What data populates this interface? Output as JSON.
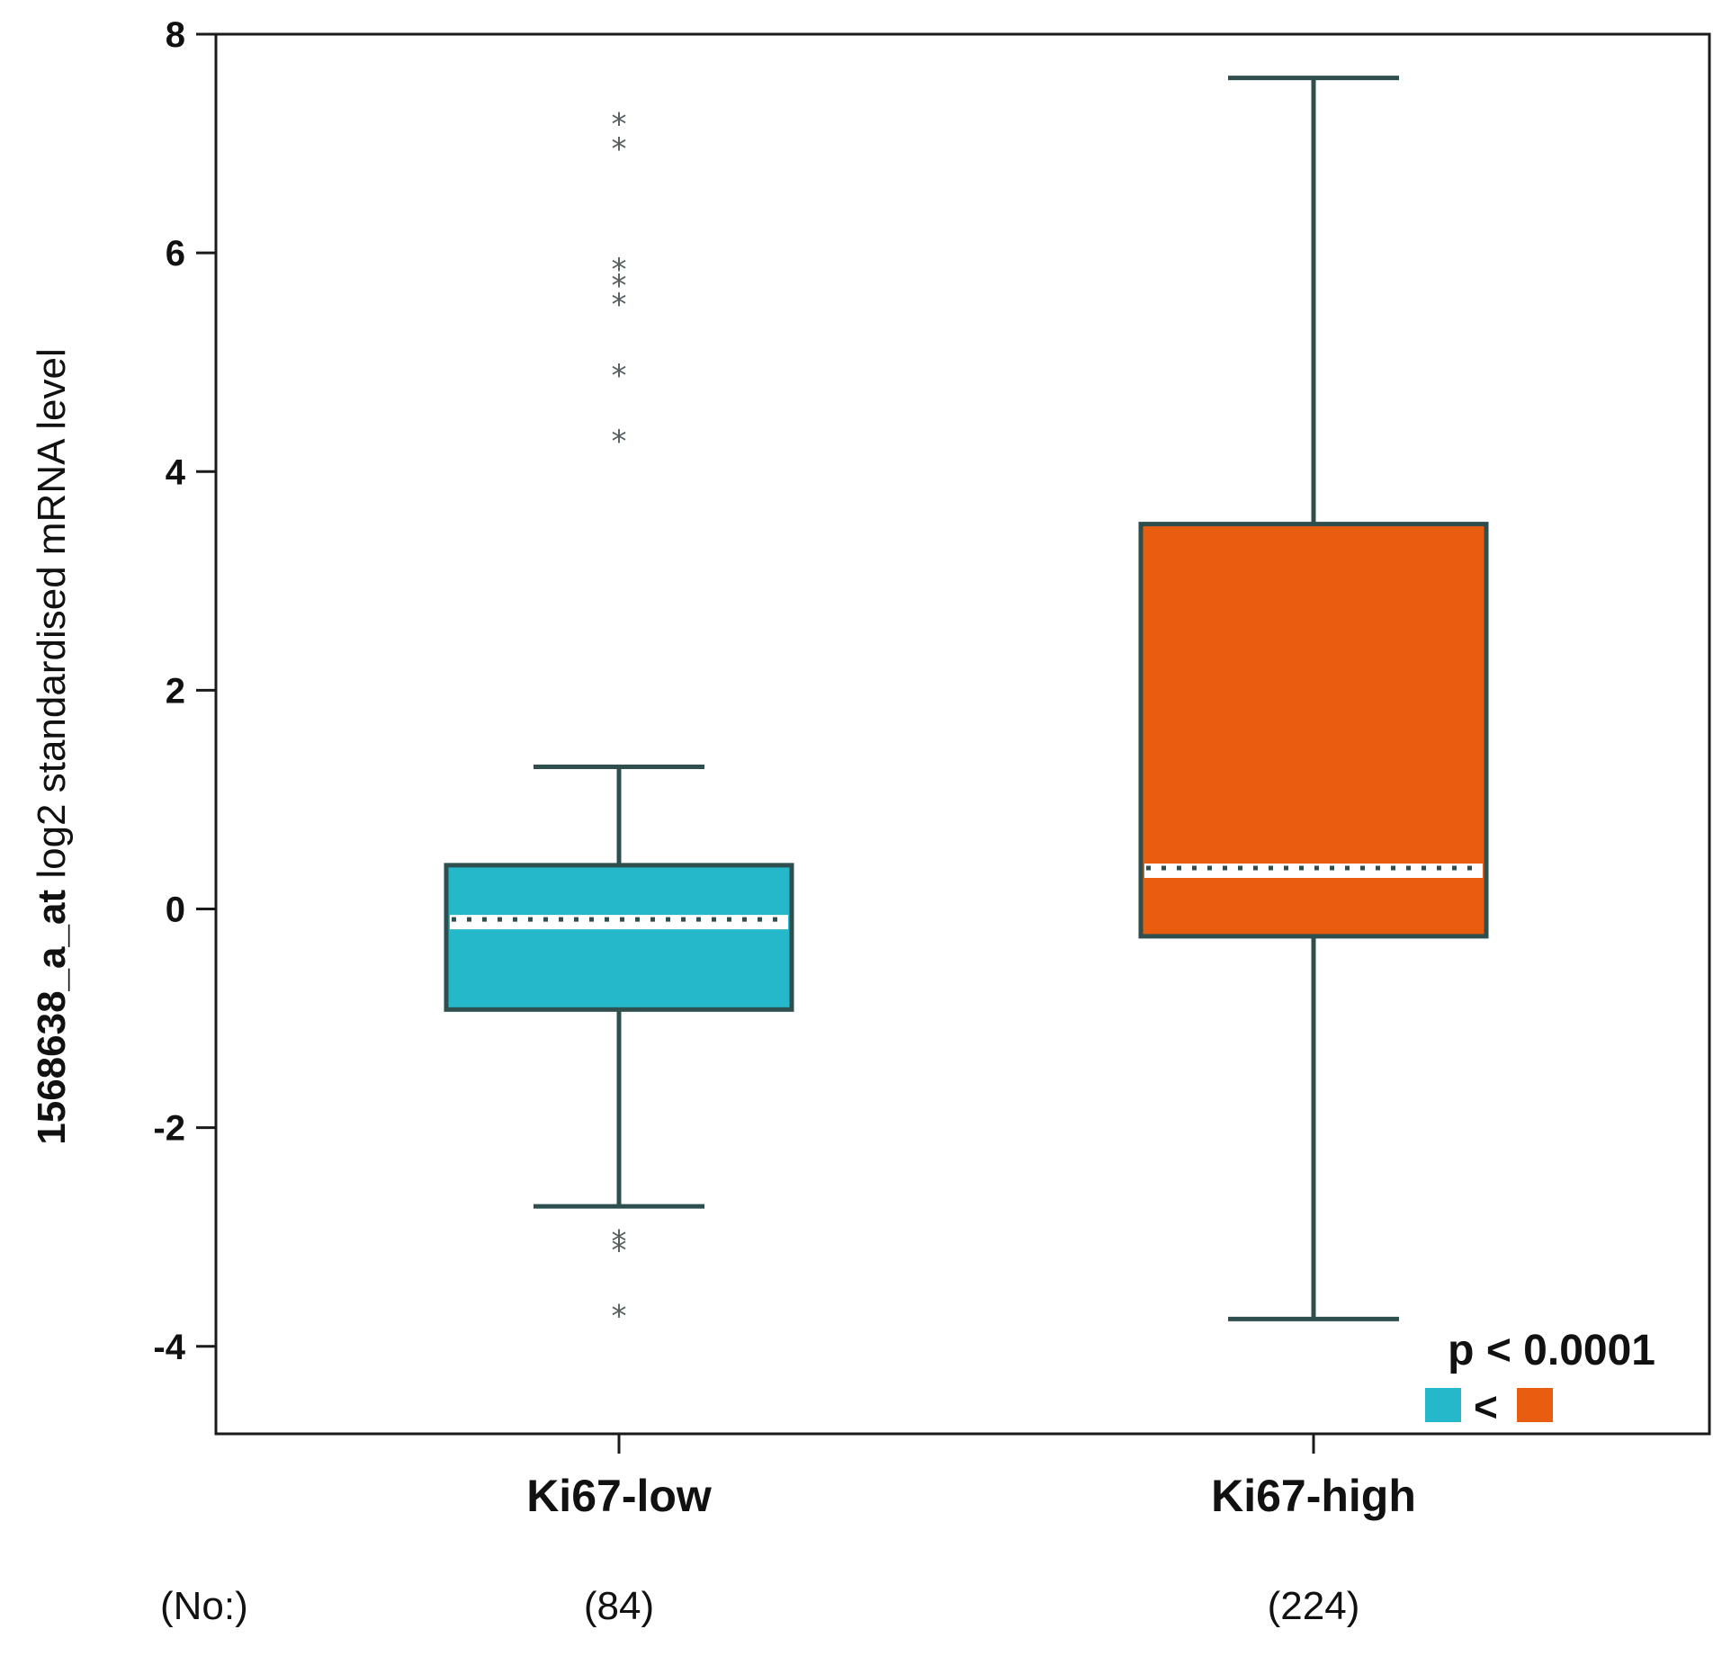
{
  "chart_data": {
    "type": "box",
    "ylabel_prefix": "1568638_a_at",
    "ylabel_suffix": " log2 standardised mRNA level",
    "ylim": [
      -4.8,
      8.0
    ],
    "yticks": [
      -4,
      -2,
      0,
      2,
      4,
      6,
      8
    ],
    "grid": false,
    "count_row_label": "(No:)",
    "groups": [
      {
        "label": "Ki67-low",
        "count": "(84)",
        "color": "#25b8cb",
        "whisker_low": -2.72,
        "q1": -0.92,
        "median": -0.12,
        "q3": 0.4,
        "whisker_high": 1.3,
        "outliers": [
          7.2,
          6.97,
          5.87,
          5.72,
          5.55,
          4.9,
          4.3,
          -3.02,
          -3.1,
          -3.7
        ]
      },
      {
        "label": "Ki67-high",
        "count": "(224)",
        "color": "#e85d10",
        "whisker_low": -3.75,
        "q1": -0.25,
        "median": 0.35,
        "q3": 3.52,
        "whisker_high": 7.6,
        "outliers": []
      }
    ],
    "annotation": {
      "text": "p < 0.0001",
      "comparison": "<",
      "left_color": "#25b8cb",
      "right_color": "#e85d10"
    },
    "line_color": "#2f4f4f"
  }
}
